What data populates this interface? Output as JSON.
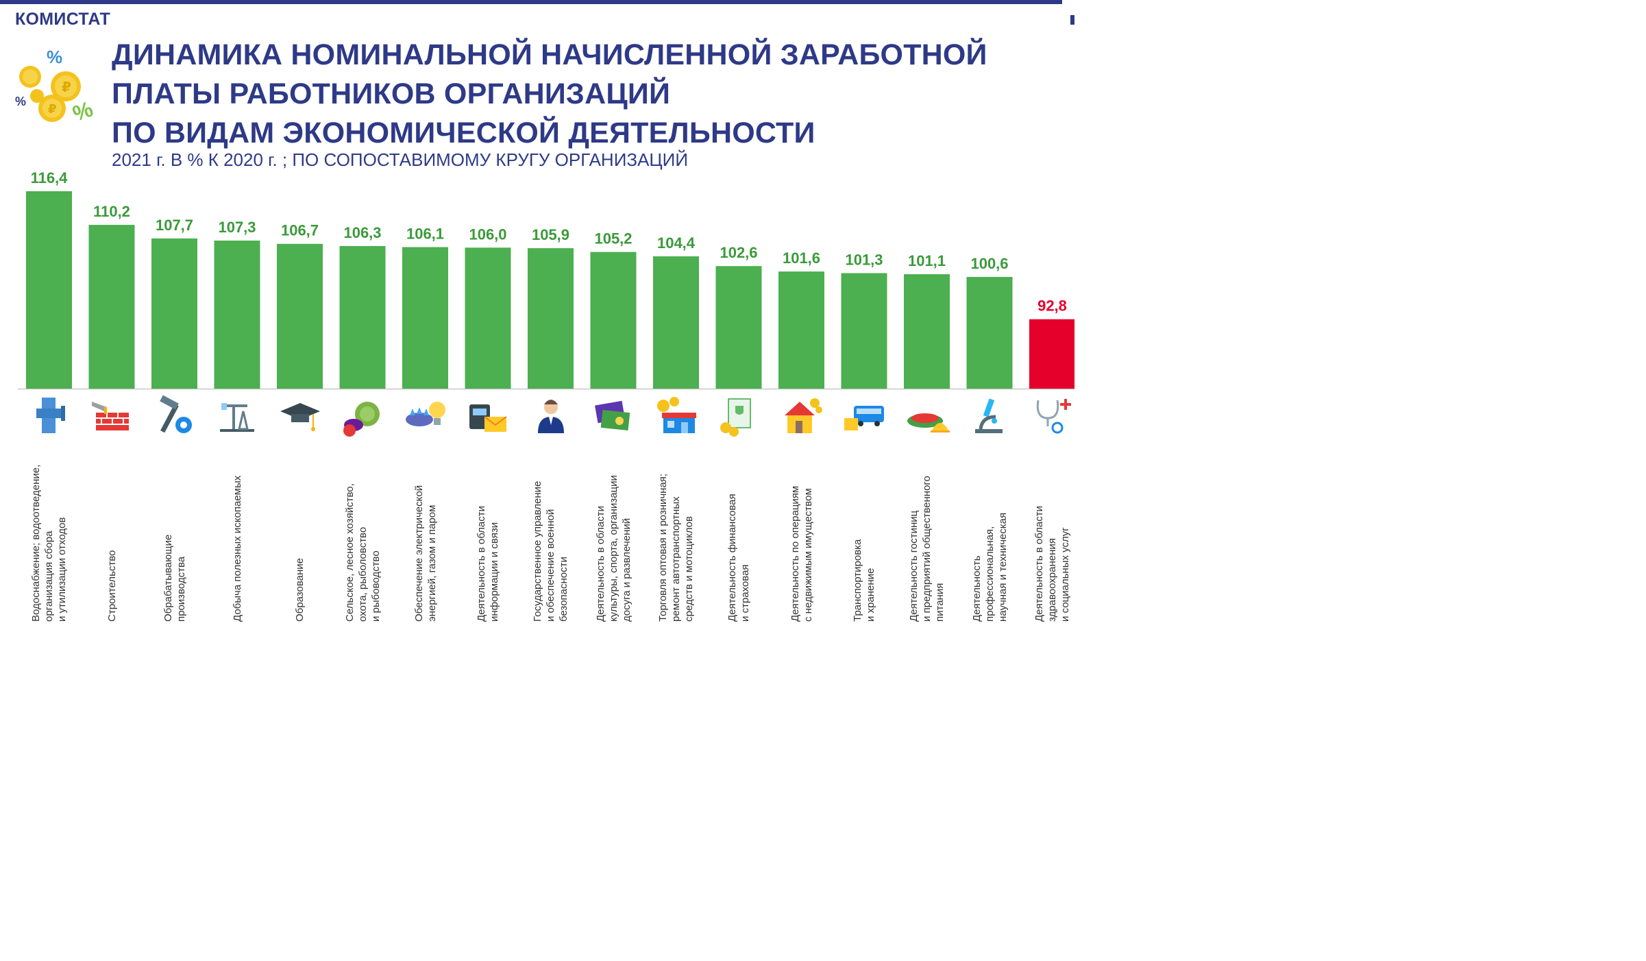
{
  "brand": "КОМИСТАТ",
  "title": "ДИНАМИКА НОМИНАЛЬНОЙ НАЧИСЛЕННОЙ ЗАРАБОТНОЙ\nПЛАТЫ РАБОТНИКОВ ОРГАНИЗАЦИЙ\nПО ВИДАМ ЭКОНОМИЧЕСКОЙ ДЕЯТЕЛЬНОСТИ",
  "subtitle": "2021 г. В % К 2020 г. ; ПО СОПОСТАВИМОМУ КРУГУ ОРГАНИЗАЦИЙ",
  "colors": {
    "brand": "#2e3a87",
    "bar_positive": "#4caf50",
    "bar_negative": "#e4002b",
    "label_positive": "#3a9a3a"
  },
  "chart_data": {
    "type": "bar",
    "categories": [
      "Водоснабжение; водоотведение,\nорганизация сбора\nи утилизации отходов",
      "Строительство",
      "Обрабатывающие\nпроизводства",
      "Добыча полезных ископаемых",
      "Образование",
      "Сельское, лесное хозяйство,\nохота, рыболовство\nи рыбоводство",
      "Обеспечение электрической\nэнергией, газом и паром",
      "Деятельность в области\nинформации и связи",
      "Государственное управление\nи обеспечение военной\nбезопасности",
      "Деятельность в области\nкультуры, спорта, организации\nдосуга и развлечений",
      "Торговля оптовая и розничная;\nремонт автотранспортных\nсредств и мотоциклов",
      "Деятельность финансовая\nи страховая",
      "Деятельность по операциям\nс недвижимым имуществом",
      "Транспортировка\nи хранение",
      "Деятельность гостиниц\nи предприятий общественного\nпитания",
      "Деятельность\nпрофессиональная,\nнаучная и техническая",
      "Деятельность в области\nздравоохранения\nи социальных услуг"
    ],
    "values": [
      116.4,
      110.2,
      107.7,
      107.3,
      106.7,
      106.3,
      106.1,
      106.0,
      105.9,
      105.2,
      104.4,
      102.6,
      101.6,
      101.3,
      101.1,
      100.6,
      92.8
    ],
    "value_labels": [
      "116,4",
      "110,2",
      "107,7",
      "107,3",
      "106,7",
      "106,3",
      "106,1",
      "106,0",
      "105,9",
      "105,2",
      "104,4",
      "102,6",
      "101,6",
      "101,3",
      "101,1",
      "100,6",
      "92,8"
    ],
    "ylim": [
      0,
      116.4
    ],
    "grid": false,
    "legend": "none",
    "highlight_below": 100,
    "icons": [
      "pipe-icon",
      "brick-wall-icon",
      "hammer-gear-icon",
      "oil-rig-icon",
      "graduation-cap-icon",
      "vegetables-icon",
      "gas-burner-bulb-icon",
      "phone-mail-icon",
      "official-person-icon",
      "theater-tickets-icon",
      "shop-coins-icon",
      "document-coins-icon",
      "house-coins-icon",
      "bus-box-icon",
      "dish-icon",
      "microscope-icon",
      "stethoscope-icon"
    ]
  }
}
